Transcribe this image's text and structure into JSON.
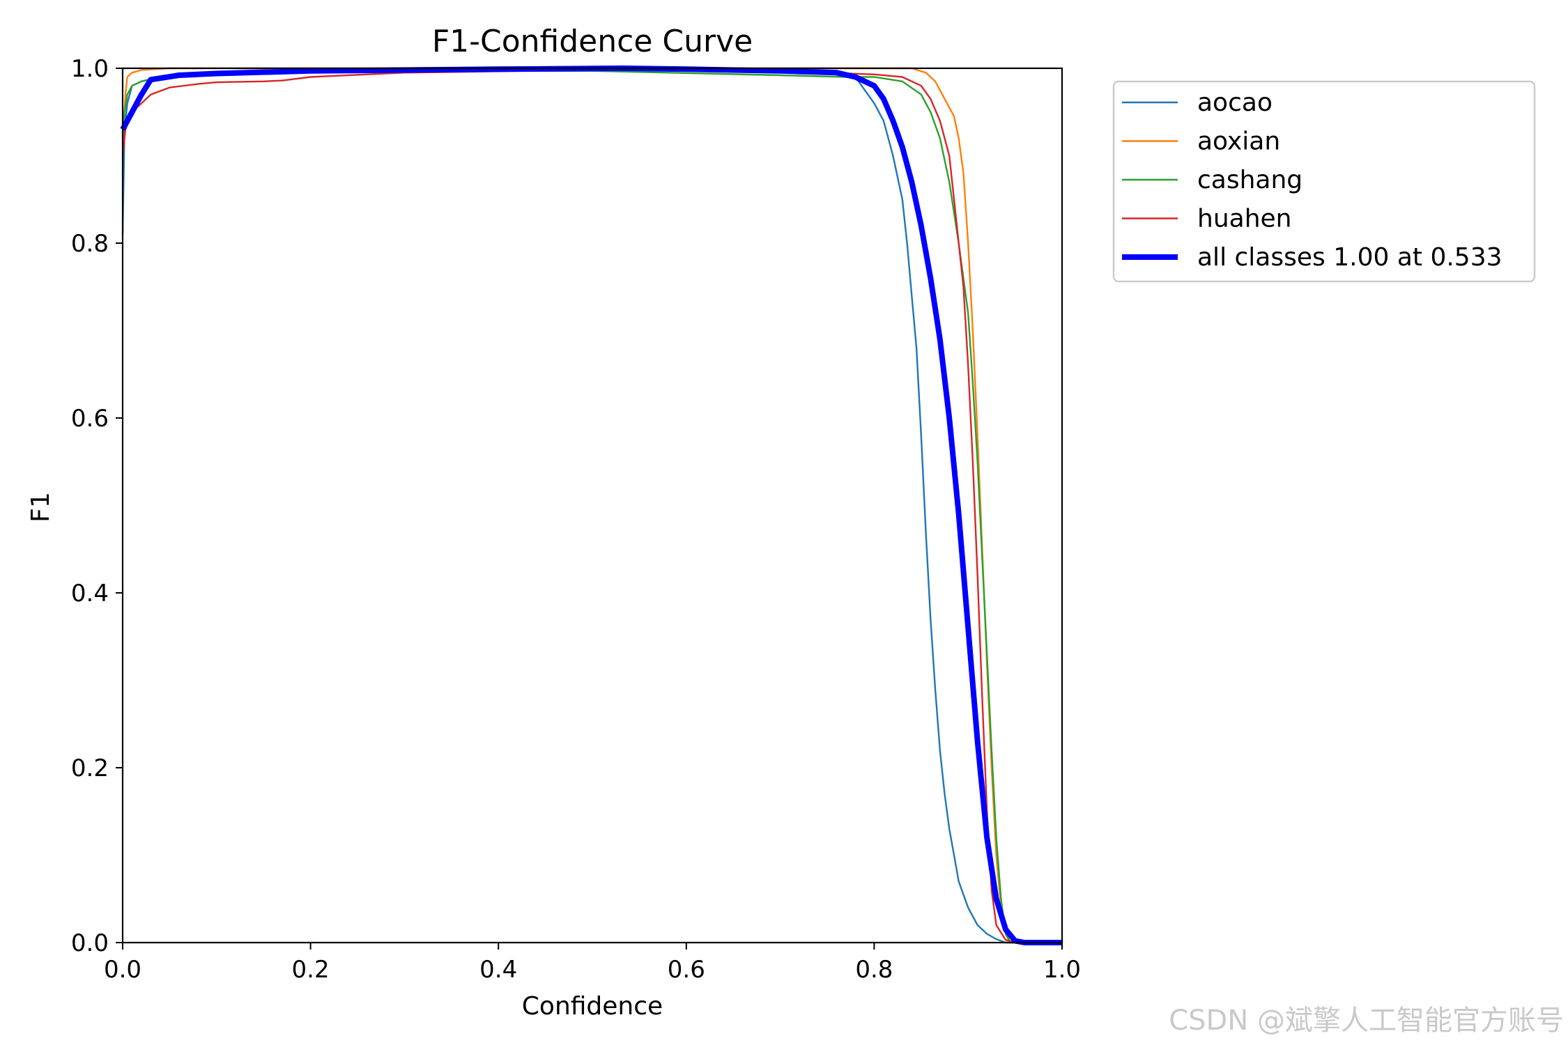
{
  "chart_data": {
    "type": "line",
    "title": "F1-Confidence Curve",
    "xlabel": "Confidence",
    "ylabel": "F1",
    "xlim": [
      0.0,
      1.0
    ],
    "ylim": [
      0.0,
      1.0
    ],
    "xticks": [
      "0.0",
      "0.2",
      "0.4",
      "0.6",
      "0.8",
      "1.0"
    ],
    "yticks": [
      "0.0",
      "0.2",
      "0.4",
      "0.6",
      "0.8",
      "1.0"
    ],
    "grid": false,
    "legend_position": "outside-top-right",
    "series": [
      {
        "name": "aocao",
        "color": "#1f77b4",
        "x": [
          0.0,
          0.002,
          0.005,
          0.01,
          0.02,
          0.04,
          0.1,
          0.3,
          0.5,
          0.7,
          0.76,
          0.78,
          0.8,
          0.81,
          0.82,
          0.83,
          0.835,
          0.84,
          0.845,
          0.85,
          0.855,
          0.86,
          0.865,
          0.87,
          0.875,
          0.88,
          0.885,
          0.89,
          0.9,
          0.91,
          0.92,
          0.93,
          0.94,
          0.95,
          1.0
        ],
        "y": [
          0.81,
          0.93,
          0.96,
          0.98,
          0.985,
          0.99,
          0.995,
          0.998,
          0.998,
          0.996,
          0.995,
          0.99,
          0.96,
          0.94,
          0.9,
          0.85,
          0.8,
          0.74,
          0.68,
          0.58,
          0.47,
          0.37,
          0.29,
          0.22,
          0.17,
          0.13,
          0.1,
          0.07,
          0.04,
          0.02,
          0.01,
          0.004,
          0.0,
          0.0,
          0.0
        ]
      },
      {
        "name": "aoxian",
        "color": "#ff7f0e",
        "x": [
          0.0,
          0.003,
          0.005,
          0.01,
          0.02,
          0.05,
          0.1,
          0.3,
          0.5,
          0.7,
          0.8,
          0.84,
          0.855,
          0.865,
          0.875,
          0.885,
          0.89,
          0.895,
          0.9,
          0.905,
          0.91,
          0.915,
          0.92,
          0.925,
          0.93,
          0.935,
          0.94,
          0.945,
          0.95,
          1.0
        ],
        "y": [
          0.92,
          0.97,
          0.99,
          0.995,
          0.998,
          1.0,
          1.0,
          1.0,
          1.0,
          1.0,
          1.0,
          1.0,
          0.995,
          0.985,
          0.965,
          0.945,
          0.92,
          0.88,
          0.8,
          0.7,
          0.58,
          0.45,
          0.32,
          0.2,
          0.1,
          0.04,
          0.01,
          0.0,
          0.0,
          0.0
        ]
      },
      {
        "name": "cashang",
        "color": "#2ca02c",
        "x": [
          0.0,
          0.002,
          0.005,
          0.01,
          0.02,
          0.04,
          0.1,
          0.3,
          0.5,
          0.7,
          0.77,
          0.8,
          0.83,
          0.85,
          0.86,
          0.87,
          0.88,
          0.89,
          0.9,
          0.905,
          0.91,
          0.915,
          0.92,
          0.925,
          0.93,
          0.935,
          0.94,
          0.945,
          0.95,
          1.0
        ],
        "y": [
          0.92,
          0.95,
          0.97,
          0.98,
          0.985,
          0.99,
          0.995,
          0.997,
          0.997,
          0.992,
          0.99,
          0.99,
          0.985,
          0.97,
          0.95,
          0.92,
          0.87,
          0.8,
          0.72,
          0.64,
          0.55,
          0.44,
          0.33,
          0.22,
          0.12,
          0.05,
          0.01,
          0.0,
          0.0,
          0.0
        ]
      },
      {
        "name": "huahen",
        "color": "#d62728",
        "x": [
          0.0,
          0.003,
          0.01,
          0.02,
          0.03,
          0.05,
          0.08,
          0.1,
          0.15,
          0.17,
          0.2,
          0.3,
          0.5,
          0.7,
          0.8,
          0.83,
          0.85,
          0.86,
          0.87,
          0.88,
          0.885,
          0.89,
          0.895,
          0.9,
          0.905,
          0.91,
          0.915,
          0.92,
          0.925,
          0.93,
          0.94,
          0.95,
          1.0
        ],
        "y": [
          0.9,
          0.93,
          0.95,
          0.96,
          0.97,
          0.978,
          0.982,
          0.984,
          0.985,
          0.986,
          0.99,
          0.995,
          0.998,
          0.997,
          0.993,
          0.99,
          0.98,
          0.965,
          0.94,
          0.9,
          0.85,
          0.8,
          0.75,
          0.66,
          0.55,
          0.42,
          0.28,
          0.15,
          0.06,
          0.02,
          0.003,
          0.0,
          0.0
        ]
      },
      {
        "name": "all classes 1.00 at 0.533",
        "color": "#0000ff",
        "x": [
          0.0,
          0.01,
          0.02,
          0.03,
          0.06,
          0.1,
          0.2,
          0.3,
          0.4,
          0.533,
          0.6,
          0.7,
          0.76,
          0.78,
          0.8,
          0.81,
          0.82,
          0.83,
          0.84,
          0.85,
          0.86,
          0.87,
          0.88,
          0.89,
          0.9,
          0.91,
          0.92,
          0.93,
          0.94,
          0.95,
          0.96,
          1.0
        ],
        "y": [
          0.93,
          0.95,
          0.97,
          0.987,
          0.992,
          0.994,
          0.997,
          0.998,
          0.999,
          1.0,
          0.999,
          0.997,
          0.995,
          0.99,
          0.98,
          0.965,
          0.94,
          0.91,
          0.87,
          0.82,
          0.76,
          0.69,
          0.6,
          0.49,
          0.36,
          0.23,
          0.12,
          0.05,
          0.015,
          0.002,
          0.0,
          0.0
        ],
        "thick": true
      }
    ]
  },
  "watermark": "CSDN @斌擎人工智能官方账号"
}
